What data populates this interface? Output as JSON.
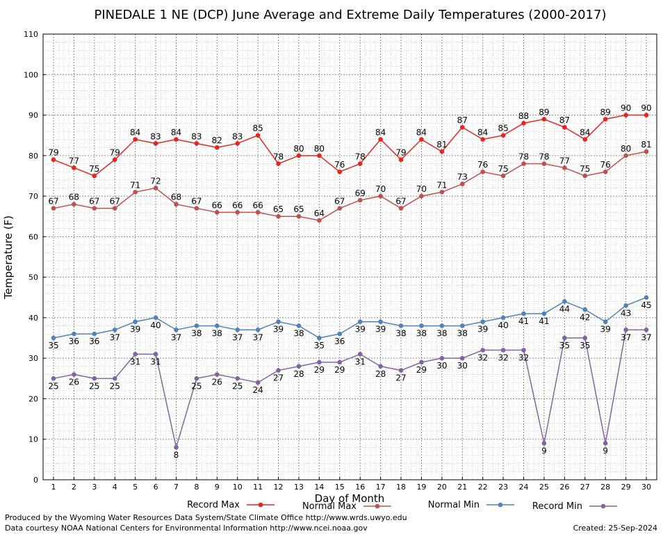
{
  "chart_data": {
    "type": "line",
    "title": "PINEDALE 1 NE (DCP) June Average and Extreme Daily Temperatures (2000-2017)",
    "xlabel": "Day of Month",
    "ylabel": "Temperature (F)",
    "ylim": [
      0,
      110
    ],
    "yticks": [
      0,
      10,
      20,
      30,
      40,
      50,
      60,
      70,
      80,
      90,
      100,
      110
    ],
    "grid": true,
    "legend": "bottom",
    "x": [
      1,
      2,
      3,
      4,
      5,
      6,
      7,
      8,
      9,
      10,
      11,
      12,
      13,
      14,
      15,
      16,
      17,
      18,
      19,
      20,
      21,
      22,
      23,
      24,
      25,
      26,
      27,
      28,
      29,
      30
    ],
    "series": [
      {
        "name": "Record Max",
        "color": "#e8241f",
        "label_side": "above",
        "values": [
          79,
          77,
          75,
          79,
          84,
          83,
          84,
          83,
          82,
          83,
          85,
          78,
          80,
          80,
          76,
          78,
          84,
          79,
          84,
          81,
          87,
          84,
          85,
          88,
          89,
          87,
          84,
          89,
          90,
          90
        ]
      },
      {
        "name": "Normal Max",
        "color": "#c0504d",
        "label_side": "above",
        "values": [
          67,
          68,
          67,
          67,
          71,
          72,
          68,
          67,
          66,
          66,
          66,
          65,
          65,
          64,
          67,
          69,
          70,
          67,
          70,
          71,
          73,
          76,
          75,
          78,
          78,
          77,
          75,
          76,
          80,
          81
        ]
      },
      {
        "name": "Normal Min",
        "color": "#4f81bd",
        "label_side": "below",
        "values": [
          35,
          36,
          36,
          37,
          39,
          40,
          37,
          38,
          38,
          37,
          37,
          39,
          38,
          35,
          36,
          39,
          39,
          38,
          38,
          38,
          38,
          39,
          40,
          41,
          41,
          44,
          42,
          39,
          43,
          45
        ]
      },
      {
        "name": "Record Min",
        "color": "#8064a2",
        "label_side": "below",
        "values": [
          25,
          26,
          25,
          25,
          31,
          31,
          8,
          25,
          26,
          25,
          24,
          27,
          28,
          29,
          29,
          31,
          28,
          27,
          29,
          30,
          30,
          32,
          32,
          32,
          9,
          35,
          35,
          9,
          37,
          37
        ]
      }
    ]
  },
  "footer": {
    "produced_by": "Produced by the Wyoming Water Resources Data System/State Climate Office http://www.wrds.uwyo.edu",
    "courtesy": "Data courtesy NOAA National Centers for Environmental Information http://www.ncei.noaa.gov",
    "created": "Created:  25-Sep-2024"
  }
}
